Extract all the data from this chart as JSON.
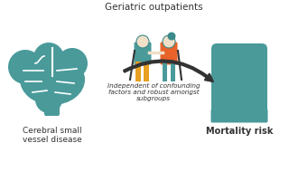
{
  "bg_color": "#ffffff",
  "teal": "#4a9a9a",
  "teal_dark": "#3d8a8a",
  "orange_red": "#e8622a",
  "yellow": "#e8a020",
  "skin": "#f0e0c8",
  "text_dark": "#333333",
  "title_top": "Geriatric outpatients",
  "label_left": "Cerebral small\nvessel disease",
  "label_right": "Mortality risk",
  "arrow_text": "Independent of confounding\nfactors and robust amongst\nsubgroups",
  "figsize": [
    3.2,
    2.0
  ],
  "dpi": 100
}
